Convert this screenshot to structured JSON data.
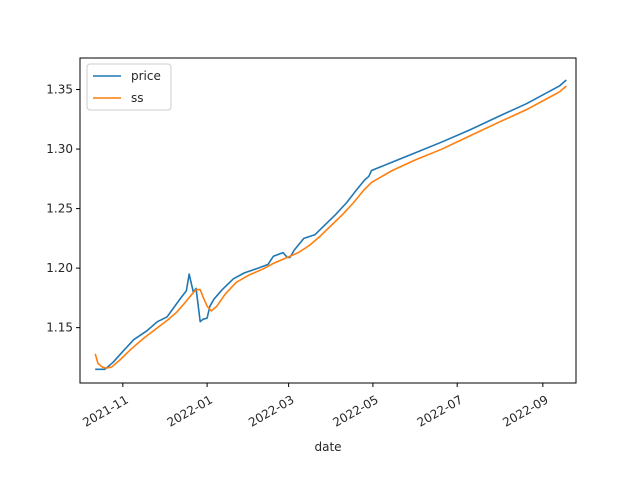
{
  "chart_data": {
    "type": "line",
    "title": "",
    "xlabel": "date",
    "ylabel": "",
    "x_axis_type": "date",
    "xlim": [
      "2021-10-01",
      "2022-09-25"
    ],
    "ylim": [
      1.1035,
      1.3765
    ],
    "x_ticks": [
      {
        "date": "2021-11-01",
        "label": "2021-11"
      },
      {
        "date": "2022-01-01",
        "label": "2022-01"
      },
      {
        "date": "2022-03-01",
        "label": "2022-03"
      },
      {
        "date": "2022-05-01",
        "label": "2022-05"
      },
      {
        "date": "2022-07-01",
        "label": "2022-07"
      },
      {
        "date": "2022-09-01",
        "label": "2022-09"
      }
    ],
    "y_ticks": [
      {
        "value": 1.15,
        "label": "1.15"
      },
      {
        "value": 1.2,
        "label": "1.20"
      },
      {
        "value": 1.25,
        "label": "1.25"
      },
      {
        "value": 1.3,
        "label": "1.30"
      },
      {
        "value": 1.35,
        "label": "1.35"
      }
    ],
    "grid": false,
    "legend_position": "top-left",
    "series": [
      {
        "name": "price",
        "color": "#1f77b4",
        "points": [
          [
            "2021-10-12",
            1.115
          ],
          [
            "2021-10-19",
            1.115
          ],
          [
            "2021-10-25",
            1.121
          ],
          [
            "2021-11-01",
            1.13
          ],
          [
            "2021-11-09",
            1.14
          ],
          [
            "2021-11-18",
            1.147
          ],
          [
            "2021-11-26",
            1.155
          ],
          [
            "2021-12-03",
            1.159
          ],
          [
            "2021-12-08",
            1.167
          ],
          [
            "2021-12-13",
            1.175
          ],
          [
            "2021-12-17",
            1.181
          ],
          [
            "2021-12-19",
            1.195
          ],
          [
            "2021-12-20",
            1.19
          ],
          [
            "2021-12-22",
            1.18
          ],
          [
            "2021-12-24",
            1.183
          ],
          [
            "2021-12-27",
            1.155
          ],
          [
            "2021-12-29",
            1.157
          ],
          [
            "2022-01-01",
            1.158
          ],
          [
            "2022-01-03",
            1.168
          ],
          [
            "2022-01-06",
            1.174
          ],
          [
            "2022-01-12",
            1.182
          ],
          [
            "2022-01-20",
            1.191
          ],
          [
            "2022-01-28",
            1.196
          ],
          [
            "2022-02-07",
            1.2
          ],
          [
            "2022-02-14",
            1.203
          ],
          [
            "2022-02-18",
            1.21
          ],
          [
            "2022-02-25",
            1.213
          ],
          [
            "2022-02-28",
            1.209
          ],
          [
            "2022-03-02",
            1.209
          ],
          [
            "2022-03-05",
            1.215
          ],
          [
            "2022-03-12",
            1.225
          ],
          [
            "2022-03-20",
            1.228
          ],
          [
            "2022-03-27",
            1.236
          ],
          [
            "2022-04-04",
            1.245
          ],
          [
            "2022-04-12",
            1.255
          ],
          [
            "2022-04-18",
            1.264
          ],
          [
            "2022-04-25",
            1.274
          ],
          [
            "2022-04-28",
            1.277
          ],
          [
            "2022-04-30",
            1.282
          ],
          [
            "2022-05-15",
            1.289
          ],
          [
            "2022-06-01",
            1.297
          ],
          [
            "2022-06-20",
            1.306
          ],
          [
            "2022-07-10",
            1.316
          ],
          [
            "2022-08-01",
            1.328
          ],
          [
            "2022-08-20",
            1.338
          ],
          [
            "2022-09-05",
            1.348
          ],
          [
            "2022-09-13",
            1.353
          ],
          [
            "2022-09-18",
            1.358
          ]
        ]
      },
      {
        "name": "ss",
        "color": "#ff7f0e",
        "points": [
          [
            "2021-10-12",
            1.128
          ],
          [
            "2021-10-14",
            1.12
          ],
          [
            "2021-10-17",
            1.117
          ],
          [
            "2021-10-20",
            1.116
          ],
          [
            "2021-10-24",
            1.117
          ],
          [
            "2021-10-30",
            1.123
          ],
          [
            "2021-11-07",
            1.132
          ],
          [
            "2021-11-16",
            1.141
          ],
          [
            "2021-11-25",
            1.149
          ],
          [
            "2021-12-03",
            1.156
          ],
          [
            "2021-12-10",
            1.163
          ],
          [
            "2021-12-16",
            1.171
          ],
          [
            "2021-12-21",
            1.178
          ],
          [
            "2021-12-24",
            1.182
          ],
          [
            "2021-12-27",
            1.182
          ],
          [
            "2021-12-29",
            1.176
          ],
          [
            "2022-01-01",
            1.168
          ],
          [
            "2022-01-04",
            1.164
          ],
          [
            "2022-01-08",
            1.168
          ],
          [
            "2022-01-14",
            1.178
          ],
          [
            "2022-01-22",
            1.188
          ],
          [
            "2022-01-31",
            1.194
          ],
          [
            "2022-02-10",
            1.199
          ],
          [
            "2022-02-18",
            1.204
          ],
          [
            "2022-02-28",
            1.209
          ],
          [
            "2022-03-08",
            1.213
          ],
          [
            "2022-03-16",
            1.219
          ],
          [
            "2022-03-24",
            1.227
          ],
          [
            "2022-04-01",
            1.236
          ],
          [
            "2022-04-09",
            1.245
          ],
          [
            "2022-04-17",
            1.255
          ],
          [
            "2022-04-24",
            1.265
          ],
          [
            "2022-04-30",
            1.272
          ],
          [
            "2022-05-15",
            1.282
          ],
          [
            "2022-06-01",
            1.291
          ],
          [
            "2022-06-20",
            1.3
          ],
          [
            "2022-07-10",
            1.311
          ],
          [
            "2022-08-01",
            1.323
          ],
          [
            "2022-08-20",
            1.333
          ],
          [
            "2022-09-05",
            1.343
          ],
          [
            "2022-09-13",
            1.348
          ],
          [
            "2022-09-18",
            1.353
          ]
        ]
      }
    ]
  }
}
